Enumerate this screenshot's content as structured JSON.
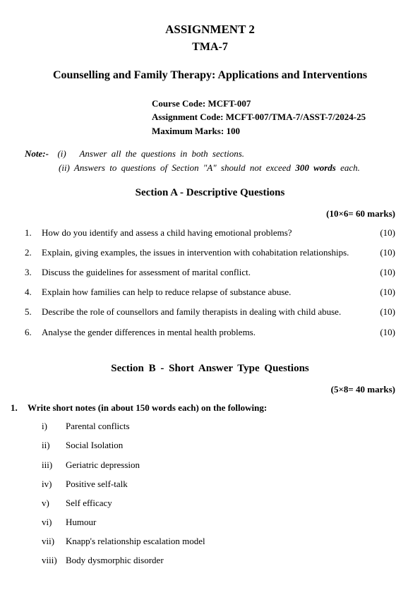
{
  "header": {
    "line1": "ASSIGNMENT 2",
    "line2": "TMA-7",
    "subject": "Counselling and Family Therapy: Applications and Interventions"
  },
  "meta": {
    "course_label": "Course Code: ",
    "course_value": "MCFT-007",
    "assign_label": "Assignment Code: ",
    "assign_value": "MCFT-007/TMA-7/ASST-7/2024-25",
    "max_label": "Maximum Marks: ",
    "max_value": "100"
  },
  "note": {
    "label": "Note:-",
    "i_num": "(i)",
    "i_text": "Answer all the questions in both sections.",
    "ii_num": "(ii)",
    "ii_pre": "Answers to questions of Section \"A\" should not exceed ",
    "ii_bold": "300 words",
    "ii_post": " each."
  },
  "sectionA": {
    "heading": "Section A - Descriptive Questions",
    "marks": "(10×6= 60 marks)",
    "questions": [
      {
        "n": "1.",
        "t": "How do you identify and assess a child having emotional problems?",
        "m": "(10)"
      },
      {
        "n": "2.",
        "t": "Explain, giving examples, the issues in intervention with cohabitation relationships.",
        "m": "(10)"
      },
      {
        "n": "3.",
        "t": "Discuss the guidelines for assessment of marital conflict.",
        "m": "(10)"
      },
      {
        "n": "4.",
        "t": "Explain how families can help to reduce relapse of substance abuse.",
        "m": "(10)"
      },
      {
        "n": "5.",
        "t": "Describe the role of counsellors and family therapists in dealing with child abuse.",
        "m": "(10)"
      },
      {
        "n": "6.",
        "t": "Analyse the gender differences in mental health problems.",
        "m": "(10)"
      }
    ]
  },
  "sectionB": {
    "heading": "Section  B  - Short  Answer  Type  Questions",
    "marks": "(5×8= 40 marks)",
    "intro_n": "1.",
    "intro_t": "Write short notes (in about 150 words each) on the following:",
    "items": [
      {
        "n": "i)",
        "t": "Parental conflicts"
      },
      {
        "n": "ii)",
        "t": "Social Isolation"
      },
      {
        "n": "iii)",
        "t": "Geriatric depression"
      },
      {
        "n": "iv)",
        "t": "Positive self-talk"
      },
      {
        "n": "v)",
        "t": "Self efficacy"
      },
      {
        "n": "vi)",
        "t": "Humour"
      },
      {
        "n": "vii)",
        "t": "Knapp's relationship escalation model"
      },
      {
        "n": "viii)",
        "t": "Body dysmorphic disorder"
      }
    ]
  }
}
